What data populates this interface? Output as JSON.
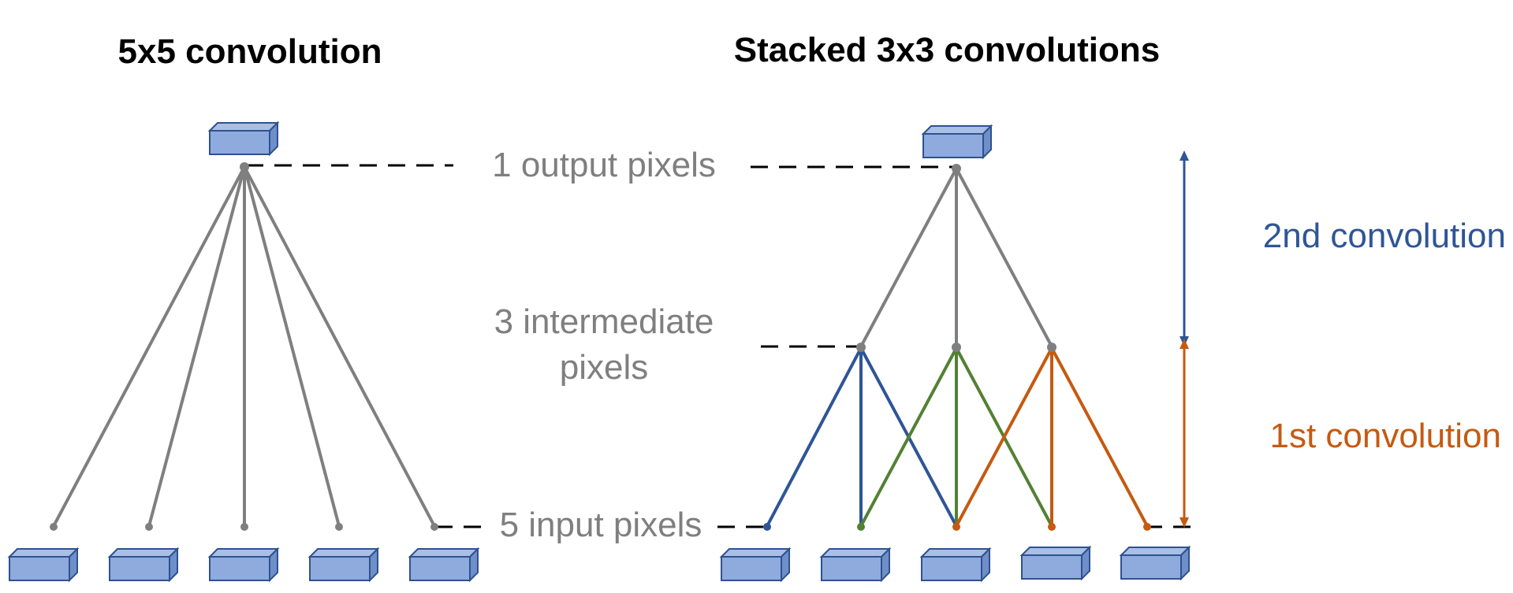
{
  "titles": {
    "left": "5x5 convolution",
    "right": "Stacked 3x3 convolutions"
  },
  "labels": {
    "output": "1 output pixels",
    "intermediate_line1": "3 intermediate",
    "intermediate_line2": "pixels",
    "input": "5 input pixels"
  },
  "convolutions": {
    "second": "2nd convolution",
    "first": "1st convolution"
  },
  "colors": {
    "gray": "#7f7f7f",
    "blue": "#2e5597",
    "green": "#538134",
    "orange": "#c55a11",
    "box_fill": "#8faadc",
    "box_stroke": "#2f528f"
  }
}
